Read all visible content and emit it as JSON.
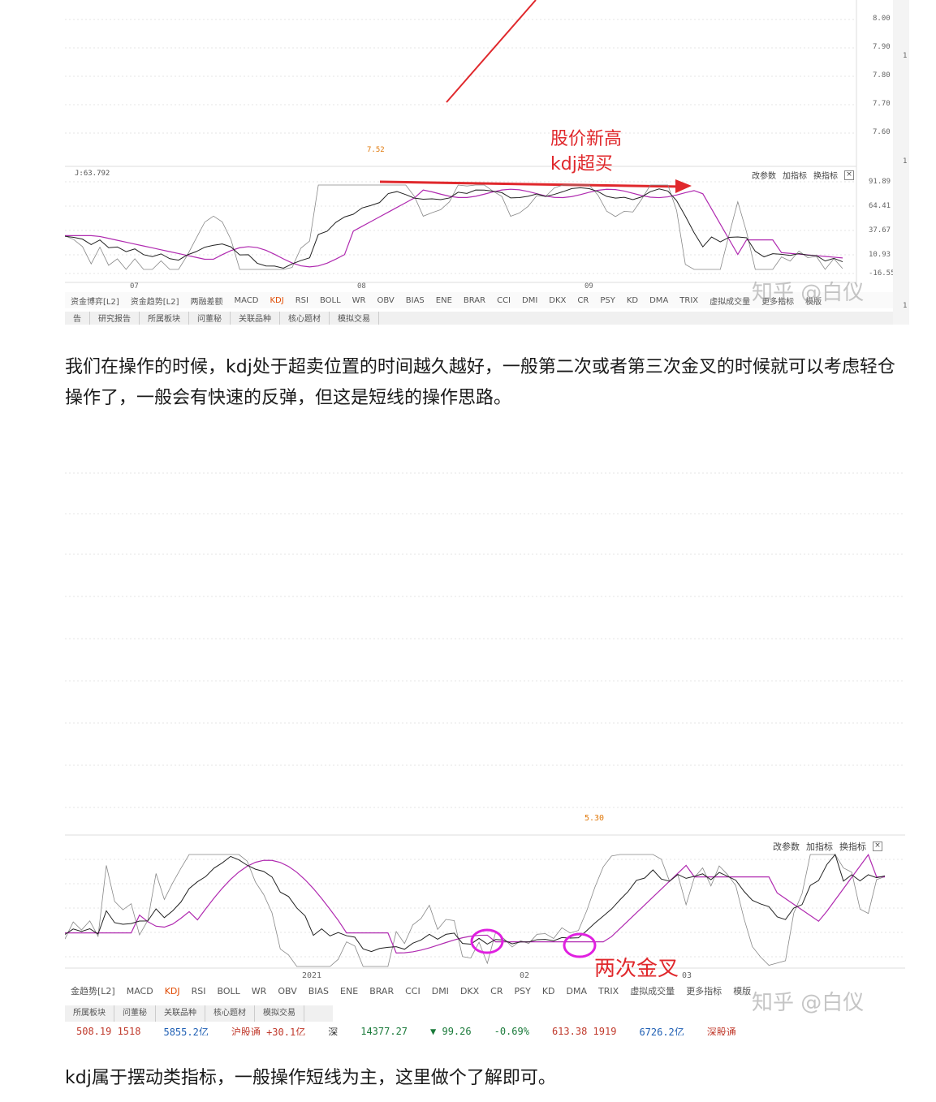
{
  "screenshot1": {
    "price_axis": [
      "8.00",
      "7.90",
      "7.80",
      "7.70",
      "7.60"
    ],
    "low_label": "7.52",
    "j_label": "J:63.792",
    "kdj_axis": [
      "91.89",
      "64.41",
      "37.67",
      "10.93",
      "-16.55"
    ],
    "months": [
      "07",
      "08",
      "09"
    ],
    "controls": {
      "params": "改参数",
      "add": "加指标",
      "switch": "换指标",
      "close": "×"
    },
    "indicator_tabs": [
      "资金博弈[L2]",
      "资金趋势[L2]",
      "两融差额",
      "MACD",
      "KDJ",
      "RSI",
      "BOLL",
      "WR",
      "OBV",
      "BIAS",
      "ENE",
      "BRAR",
      "CCI",
      "DMI",
      "DKX",
      "CR",
      "PSY",
      "KD",
      "DMA",
      "TRIX",
      "虚拟成交量",
      "更多指标",
      "模版"
    ],
    "bottom_tabs": [
      "告",
      "研究报告",
      "所属板块",
      "问董秘",
      "关联品种",
      "核心题材",
      "模拟交易"
    ],
    "annotation_line1": "股价新高",
    "annotation_line2": "kdj超买",
    "side_marks": [
      "1",
      "1",
      "1"
    ]
  },
  "paragraph1": "我们在操作的时候，kdj处于超卖位置的时间越久越好，一般第二次或者第三次金叉的时候就可以考虑轻仓操作了，一般会有快速的反弹，但这是短线的操作思路。",
  "screenshot2": {
    "low_label": "5.30",
    "controls": {
      "params": "改参数",
      "add": "加指标",
      "switch": "换指标",
      "close": "×"
    },
    "year_label": "2021",
    "month_label": "02",
    "month_label_b": "03",
    "annotation": "两次金叉",
    "indicator_tabs": [
      "金趋势[L2]",
      "MACD",
      "KDJ",
      "RSI",
      "BOLL",
      "WR",
      "OBV",
      "BIAS",
      "ENE",
      "BRAR",
      "CCI",
      "DMI",
      "DKX",
      "CR",
      "PSY",
      "KD",
      "DMA",
      "TRIX",
      "虚拟成交量",
      "更多指标",
      "模版"
    ],
    "bottom_tabs": [
      "所属板块",
      "问董秘",
      "关联品种",
      "核心题材",
      "模拟交易"
    ],
    "ticker": [
      "508.19 1518",
      "5855.2亿",
      "沪股通 +30.1亿",
      "深",
      "14377.27",
      "▼ 99.26",
      "-0.69%",
      "613.38 1919",
      "6726.2亿",
      "深股通"
    ]
  },
  "paragraph2": "kdj属于摆动类指标，一般操作短线为主，这里做个了解即可。",
  "watermark": "知乎 @白仪",
  "colors": {
    "up": "#d9534f",
    "down": "#2e8b2e",
    "annot": "#e0282c",
    "circle": "#e020e0",
    "k_line": "#222222",
    "d_line": "#b02ab0",
    "j_line": "#888888"
  }
}
